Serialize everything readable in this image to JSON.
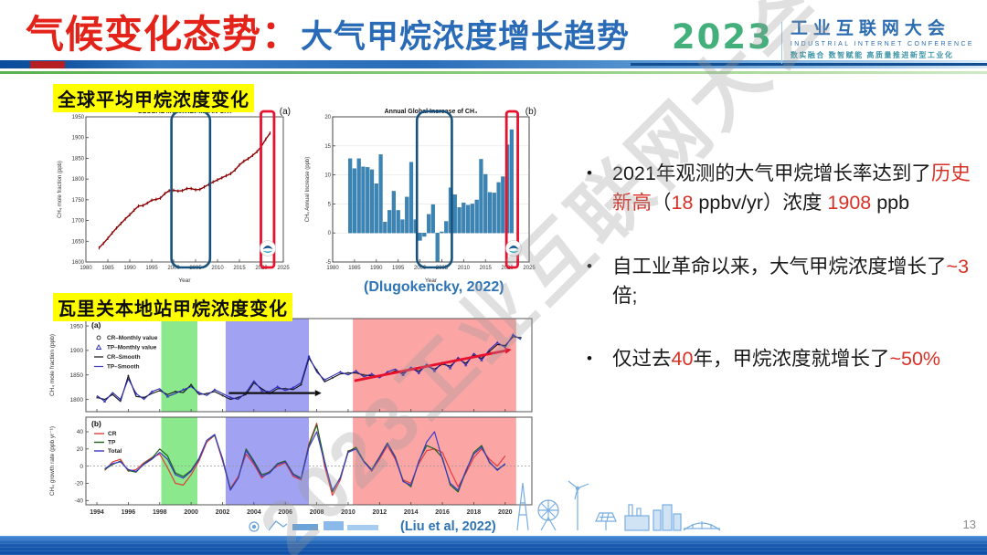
{
  "slide": {
    "title": {
      "red": "气候变化态势：",
      "blue": "大气甲烷浓度增长趋势"
    },
    "page_number": "13",
    "watermark": "2023工业互联网大会"
  },
  "logo": {
    "year": "2023",
    "name": "工业互联网大会",
    "subtitle": "INDUSTRIAL INTERNET CONFERENCE",
    "tagline": "数实融合 数智赋能 高质量推进新型工业化"
  },
  "sections": {
    "global_label": "全球平均甲烷浓度变化",
    "station_label": "瓦里关本地站甲烷浓度变化",
    "citation_top": "(Dlugokencky, 2022)",
    "citation_bottom": "(Liu et al, 2022)"
  },
  "bullets": [
    {
      "segments": [
        {
          "t": "2021年观测的大气甲烷增长率达到了",
          "c": "k"
        },
        {
          "t": "历史新高",
          "c": "r"
        },
        {
          "t": "（",
          "c": "k"
        },
        {
          "t": "18",
          "c": "r"
        },
        {
          "t": " ppbv/yr）浓度 ",
          "c": "k"
        },
        {
          "t": "1908",
          "c": "r"
        },
        {
          "t": " ppb",
          "c": "k"
        }
      ]
    },
    {
      "segments": [
        {
          "t": "自工业革命以来，大气甲烷浓度增长了",
          "c": "k"
        },
        {
          "t": "~3",
          "c": "r"
        },
        {
          "t": "倍;",
          "c": "k"
        }
      ]
    },
    {
      "segments": [
        {
          "t": "仅过去",
          "c": "k"
        },
        {
          "t": "40",
          "c": "r"
        },
        {
          "t": "年，甲烷浓度就增长了",
          "c": "k"
        },
        {
          "t": "~50%",
          "c": "r"
        }
      ]
    }
  ],
  "colors": {
    "title_red": "#e32219",
    "title_blue": "#2a6bb8",
    "highlight_yellow": "#ffff00",
    "citation_blue": "#2e74b5",
    "bullet_red": "#d93025",
    "box_blue": "#17527e",
    "box_red": "#e8112d"
  },
  "chart_data": [
    {
      "type": "line",
      "corner": "(a)",
      "title": "GLOBAL MONTHLY MEAN CH₄",
      "xlabel": "Year",
      "ylabel": "CH₄ mole fraction (ppb)",
      "xlim": [
        1980,
        2025
      ],
      "ylim": [
        1600,
        1950
      ],
      "xticks": [
        1980,
        1985,
        1990,
        1995,
        2000,
        2005,
        2010,
        2015,
        2020,
        2025
      ],
      "yticks": [
        1600,
        1650,
        1700,
        1750,
        1800,
        1850,
        1900,
        1950
      ],
      "x_start": 1983,
      "x_step": 1,
      "values": [
        1634,
        1645,
        1657,
        1670,
        1682,
        1693,
        1704,
        1714,
        1725,
        1735,
        1736,
        1742,
        1749,
        1751,
        1754,
        1765,
        1772,
        1773,
        1771,
        1772,
        1777,
        1777,
        1774,
        1775,
        1781,
        1787,
        1793,
        1798,
        1803,
        1808,
        1813,
        1822,
        1834,
        1843,
        1849,
        1857,
        1866,
        1879,
        1896,
        1911
      ],
      "line_color": "#8B0000",
      "boxes": [
        {
          "x0": 1999.5,
          "x1": 2008.3,
          "color": "#17527e",
          "rx": 10,
          "sw": 2.6
        },
        {
          "x0": 2019.9,
          "x1": 2022.9,
          "color": "#e8112d",
          "rx": 3,
          "sw": 2.8
        }
      ],
      "noaa_logo": true
    },
    {
      "type": "bar",
      "corner": "(b)",
      "title": "Annual Global Increase of CH₄",
      "xlabel": "Year",
      "ylabel": "CH₄ Annual Increase (ppb)",
      "xlim": [
        1980,
        2025
      ],
      "ylim": [
        -5,
        20
      ],
      "xticks": [
        1980,
        1985,
        1990,
        1995,
        2000,
        2005,
        2010,
        2015,
        2020,
        2025
      ],
      "yticks": [
        -5,
        0,
        5,
        10,
        15,
        20
      ],
      "x_start": 1984,
      "x_step": 1,
      "values": [
        12.8,
        11.1,
        12.8,
        11.4,
        11.3,
        10.9,
        8.5,
        13.5,
        1.9,
        3.9,
        7.2,
        3.9,
        2.3,
        6.2,
        12.2,
        2.3,
        -1.3,
        -0.6,
        3.2,
        4.9,
        -4.9,
        0.2,
        2.0,
        7.8,
        6.6,
        4.4,
        5.2,
        4.8,
        5.0,
        5.7,
        12.7,
        10.1,
        7.0,
        6.9,
        8.7,
        9.7,
        15.2,
        17.8
      ],
      "bar_color": "#3a85b5",
      "boxes": [
        {
          "x0": 1999.3,
          "x1": 2007.3,
          "color": "#17527e",
          "rx": 10,
          "sw": 2.6
        },
        {
          "x0": 2019.8,
          "x1": 2022.4,
          "color": "#e8112d",
          "rx": 3,
          "sw": 2.8
        }
      ],
      "noaa_logo": true
    },
    {
      "type": "dual",
      "xlim": [
        1993.3,
        2021.7
      ],
      "xticks": [
        1994,
        1996,
        1998,
        2000,
        2002,
        2004,
        2006,
        2008,
        2010,
        2012,
        2014,
        2016,
        2018,
        2020
      ],
      "bands": [
        {
          "x0": 1998.1,
          "x1": 2000.4,
          "color": "#6fe26f"
        },
        {
          "x0": 2002.2,
          "x1": 2007.5,
          "color": "#8b8bef"
        },
        {
          "x0": 2010.3,
          "x1": 2020.7,
          "color": "#fb8f8f"
        }
      ],
      "panel_a": {
        "corner": "(a)",
        "ylabel": "CH₄ mole fraction (ppb)",
        "ylim": [
          1775,
          1965
        ],
        "yticks": [
          1800,
          1850,
          1900,
          1950
        ],
        "legend": [
          {
            "label": "CR–Monthly value",
            "marker": "circle",
            "color": "#333333"
          },
          {
            "label": "TP–Monthly value",
            "marker": "triangle",
            "color": "#2a2ab8"
          },
          {
            "label": "CR–Smooth",
            "marker": "line",
            "color": "#111111"
          },
          {
            "label": "TP–Smooth",
            "marker": "line",
            "color": "#4444bb"
          }
        ],
        "x_start": 1994,
        "x_step": 0.5,
        "cr": [
          1804,
          1800,
          1810,
          1796,
          1848,
          1806,
          1804,
          1812,
          1818,
          1810,
          1816,
          1814,
          1830,
          1810,
          1812,
          1816,
          1808,
          1800,
          1804,
          1810,
          1834,
          1822,
          1812,
          1822,
          1822,
          1820,
          1830,
          1884,
          1860,
          1836,
          1844,
          1852,
          1854,
          1854,
          1850,
          1848,
          1848,
          1852,
          1858,
          1854,
          1862,
          1858,
          1868,
          1862,
          1872,
          1868,
          1882,
          1874,
          1890,
          1884,
          1898,
          1912,
          1910,
          1928,
          1926
        ],
        "tp": [
          1808,
          1796,
          1814,
          1800,
          1842,
          1812,
          1800,
          1816,
          1822,
          1806,
          1812,
          1820,
          1826,
          1814,
          1808,
          1820,
          1812,
          1804,
          1800,
          1814,
          1838,
          1818,
          1816,
          1826,
          1818,
          1824,
          1834,
          1888,
          1856,
          1840,
          1848,
          1856,
          1850,
          1858,
          1846,
          1852,
          1844,
          1856,
          1862,
          1850,
          1866,
          1854,
          1872,
          1858,
          1876,
          1864,
          1886,
          1870,
          1894,
          1880,
          1902,
          1916,
          1906,
          1932,
          1922
        ],
        "arrow_flat": {
          "x0": 2002.4,
          "x1": 2008.3,
          "y": 1813,
          "color": "#111111"
        },
        "arrow_rise": {
          "x0": 2010.4,
          "y0": 1838,
          "x1": 2020.4,
          "y1": 1902,
          "color": "#e8112d"
        }
      },
      "panel_b": {
        "corner": "(b)",
        "ylabel": "CH₄ growth rate (ppb yr⁻¹)",
        "ylim": [
          -45,
          57
        ],
        "yticks": [
          -40,
          -20,
          0,
          20,
          40
        ],
        "x_start": 1994.5,
        "x_step": 0.5,
        "series": [
          {
            "name": "CR",
            "color": "#e23b3b",
            "values": [
              -5,
              5,
              8,
              -6,
              -4,
              4,
              10,
              14,
              -2,
              -20,
              -22,
              -10,
              6,
              28,
              36,
              6,
              -26,
              -12,
              14,
              2,
              -14,
              -6,
              0,
              4,
              -12,
              -16,
              26,
              50,
              0,
              -34,
              -16,
              18,
              20,
              6,
              -6,
              8,
              24,
              8,
              -16,
              -20,
              3,
              18,
              20,
              16,
              -5,
              -24,
              -8,
              10,
              20,
              8,
              0,
              12
            ]
          },
          {
            "name": "TP",
            "color": "#1c641c",
            "values": [
              -4,
              2,
              6,
              -5,
              -7,
              3,
              9,
              20,
              12,
              -8,
              -12,
              -5,
              9,
              30,
              36,
              9,
              -27,
              -14,
              20,
              6,
              -10,
              -7,
              3,
              6,
              -9,
              -14,
              24,
              48,
              6,
              -30,
              -13,
              17,
              22,
              6,
              -4,
              11,
              27,
              11,
              -17,
              -24,
              6,
              24,
              20,
              10,
              -22,
              -30,
              -6,
              16,
              24,
              4,
              -4,
              2
            ]
          },
          {
            "name": "Total",
            "color": "#3b3bc8",
            "values": [
              -3,
              3,
              5,
              -4,
              -6,
              2,
              8,
              16,
              8,
              -10,
              -14,
              -6,
              8,
              30,
              37,
              8,
              -28,
              -14,
              18,
              4,
              -12,
              -8,
              2,
              5,
              -10,
              -15,
              22,
              40,
              4,
              -28,
              -14,
              16,
              20,
              5,
              -5,
              10,
              26,
              10,
              -18,
              -22,
              5,
              28,
              40,
              8,
              -20,
              -28,
              -5,
              14,
              22,
              5,
              -5,
              3
            ]
          }
        ]
      }
    }
  ]
}
